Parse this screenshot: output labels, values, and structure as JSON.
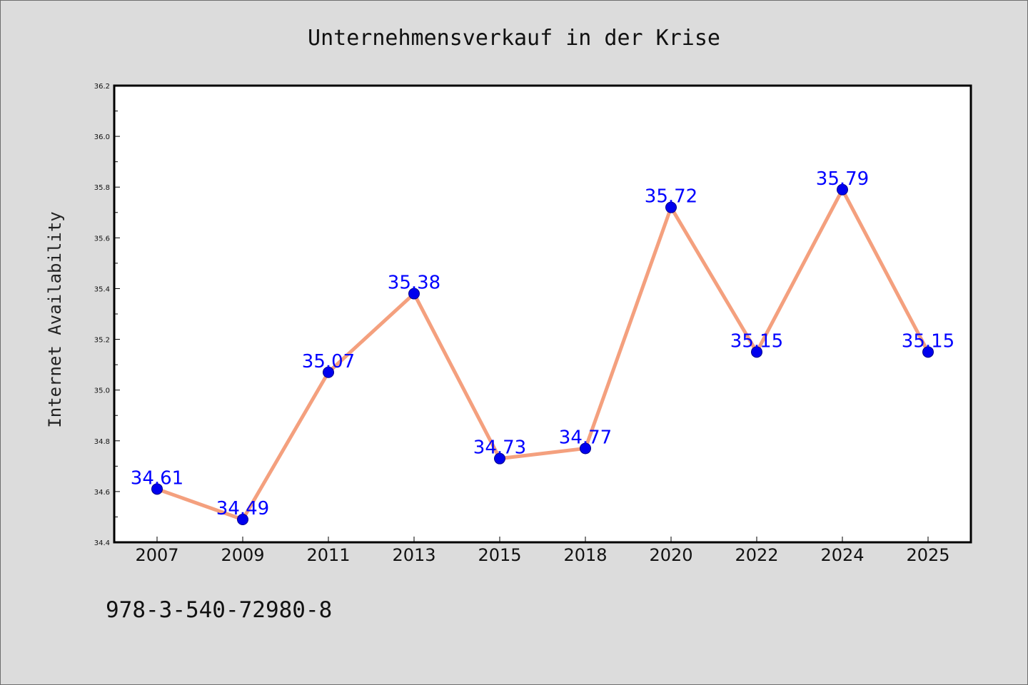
{
  "chart_data": {
    "type": "line",
    "title": "Unternehmensverkauf in der Krise",
    "xlabel": "",
    "ylabel": "Internet Availability",
    "categories": [
      "2007",
      "2009",
      "2011",
      "2013",
      "2015",
      "2018",
      "2020",
      "2022",
      "2024",
      "2025"
    ],
    "series": [
      {
        "values": [
          34.61,
          34.49,
          35.07,
          35.38,
          34.73,
          34.77,
          35.72,
          35.15,
          35.79,
          35.15
        ],
        "data_labels": [
          "34.61",
          "34.49",
          "35.07",
          "35.38",
          "34.73",
          "34.77",
          "35.72",
          "35.15",
          "35.79",
          "35.15"
        ],
        "line_color": "#f4a07e",
        "marker_color": "#0000ee"
      }
    ],
    "ylim": [
      34.4,
      36.2
    ],
    "yticks": [
      "34.4",
      "34.6",
      "34.8",
      "35.0",
      "35.2",
      "35.4",
      "35.6",
      "35.8",
      "36.0",
      "36.2"
    ],
    "grid": false,
    "legend": "none",
    "background": "#dcdcdc",
    "plot_background": "#ffffff",
    "label_color": "#0000ff"
  },
  "footer": {
    "text": "978-3-540-72980-8"
  }
}
